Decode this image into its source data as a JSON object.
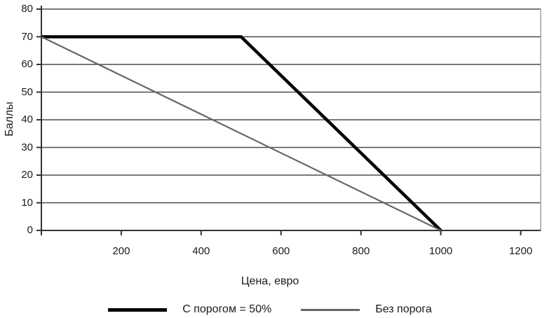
{
  "chart_data": {
    "type": "line",
    "title": "",
    "xlabel": "Цена, евро",
    "ylabel": "Баллы",
    "xlim": [
      0,
      1250
    ],
    "ylim": [
      0,
      80
    ],
    "xticks": [
      200,
      400,
      600,
      800,
      1000,
      1200
    ],
    "yticks": [
      0,
      10,
      20,
      30,
      40,
      50,
      60,
      70,
      80
    ],
    "grid": "horizontal",
    "legend_position": "bottom",
    "series": [
      {
        "name": "С порогом = 50%",
        "points": [
          [
            0,
            70
          ],
          [
            500,
            70
          ],
          [
            1000,
            0
          ]
        ],
        "color": "#000000",
        "stroke_width": 4.5
      },
      {
        "name": "Без порога",
        "points": [
          [
            0,
            70
          ],
          [
            1000,
            0
          ]
        ],
        "color": "#666666",
        "stroke_width": 2.2
      }
    ],
    "colors": {
      "axis": "#333333",
      "grid": "#4d4d4d",
      "plot_right_border": "#888888",
      "text": "#1a1a1a",
      "background": "#ffffff"
    }
  }
}
